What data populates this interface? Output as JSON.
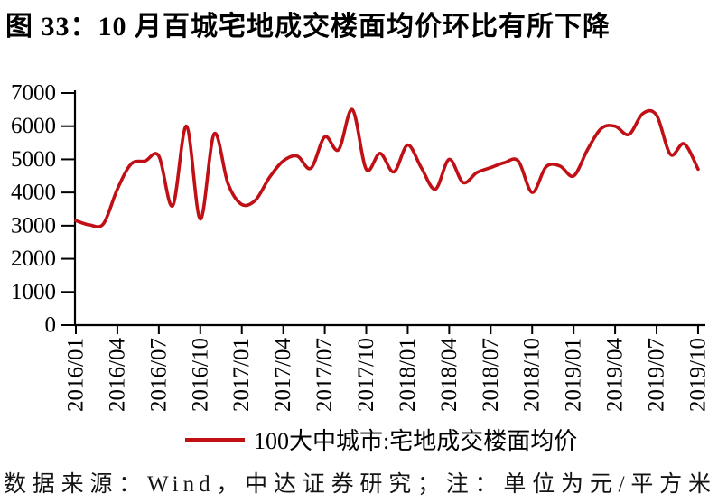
{
  "title": "图 33：10 月百城宅地成交楼面均价环比有所下降",
  "footer": "数据来源：Wind，中达证券研究；注：单位为元/平方米",
  "chart_data": {
    "type": "line",
    "title": "10 月百城宅地成交楼面均价环比有所下降",
    "xlabel": "",
    "ylabel": "",
    "unit": "元/平方米",
    "ylim": [
      0,
      7000
    ],
    "yticks": [
      0,
      1000,
      2000,
      3000,
      4000,
      5000,
      6000,
      7000
    ],
    "xtick_every": 3,
    "grid": false,
    "legend_position": "bottom",
    "x": [
      "2016/01",
      "2016/02",
      "2016/03",
      "2016/04",
      "2016/05",
      "2016/06",
      "2016/07",
      "2016/08",
      "2016/09",
      "2016/10",
      "2016/11",
      "2016/12",
      "2017/01",
      "2017/02",
      "2017/03",
      "2017/04",
      "2017/05",
      "2017/06",
      "2017/07",
      "2017/08",
      "2017/09",
      "2017/10",
      "2017/11",
      "2017/12",
      "2018/01",
      "2018/02",
      "2018/03",
      "2018/04",
      "2018/05",
      "2018/06",
      "2018/07",
      "2018/08",
      "2018/09",
      "2018/10",
      "2018/11",
      "2018/12",
      "2019/01",
      "2019/02",
      "2019/03",
      "2019/04",
      "2019/05",
      "2019/06",
      "2019/07",
      "2019/08",
      "2019/09",
      "2019/10"
    ],
    "series": [
      {
        "name": "100大中城市:宅地成交楼面均价",
        "color": "#c01015",
        "values": [
          3150,
          3020,
          3060,
          4100,
          4860,
          4950,
          5100,
          3600,
          6000,
          3200,
          5770,
          4270,
          3640,
          3770,
          4450,
          4950,
          5100,
          4730,
          5680,
          5290,
          6500,
          4700,
          5180,
          4620,
          5430,
          4730,
          4100,
          5000,
          4300,
          4600,
          4750,
          4900,
          4950,
          4000,
          4770,
          4800,
          4500,
          5290,
          5930,
          6000,
          5750,
          6380,
          6330,
          5150,
          5470,
          4700
        ]
      }
    ]
  }
}
